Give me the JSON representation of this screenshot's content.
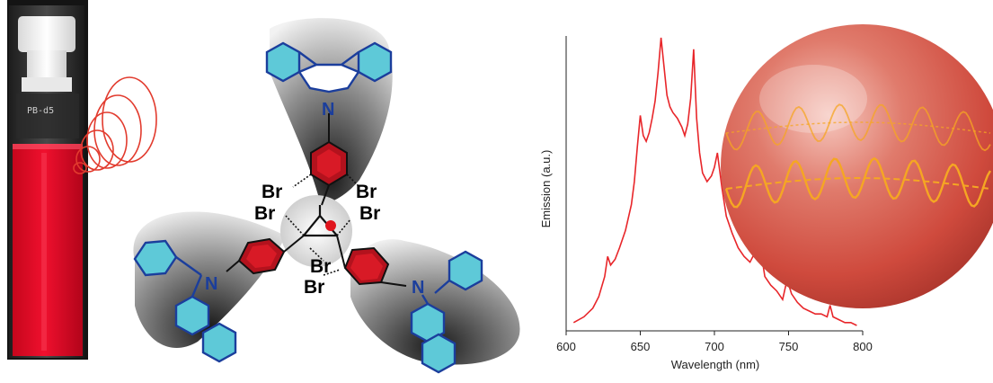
{
  "cuvette": {
    "label": "PB-d5"
  },
  "molecule": {
    "bromine_label": "Br",
    "nitrogen_label": "N",
    "colors": {
      "benzene_core": "#b3121d",
      "carbazole_fill": "#5ec9d8",
      "carbazole_stroke": "#1b3e9c",
      "dot": "#e0141c"
    }
  },
  "chart_data": {
    "type": "line",
    "xlabel": "Wavelength (nm)",
    "ylabel": "Emission (a.u.)",
    "xlim": [
      600,
      800
    ],
    "x_ticks": [
      "600",
      "650",
      "700",
      "750",
      "800"
    ],
    "grid": false,
    "series_color": "#e8262a",
    "series": [
      {
        "x": [
          605,
          612,
          618,
          622,
          626,
          628,
          630,
          633,
          636,
          640,
          644,
          646,
          648,
          650,
          652,
          654,
          656,
          658,
          660,
          662,
          664,
          666,
          668,
          670,
          672,
          675,
          678,
          680,
          682,
          684,
          686,
          688,
          690,
          692,
          695,
          698,
          700,
          702,
          705,
          708,
          712,
          716,
          720,
          724,
          727,
          729,
          731,
          734,
          738,
          742,
          746,
          749,
          752,
          756,
          760,
          764,
          768,
          772,
          776,
          778,
          780,
          784,
          788,
          792,
          796
        ],
        "y": [
          0.01,
          0.03,
          0.06,
          0.1,
          0.17,
          0.24,
          0.21,
          0.23,
          0.27,
          0.33,
          0.42,
          0.5,
          0.62,
          0.73,
          0.66,
          0.64,
          0.67,
          0.72,
          0.78,
          0.88,
          1.0,
          0.9,
          0.8,
          0.76,
          0.74,
          0.72,
          0.69,
          0.66,
          0.7,
          0.79,
          0.96,
          0.72,
          0.6,
          0.53,
          0.5,
          0.52,
          0.55,
          0.6,
          0.48,
          0.38,
          0.32,
          0.27,
          0.24,
          0.22,
          0.25,
          0.37,
          0.27,
          0.17,
          0.14,
          0.12,
          0.09,
          0.16,
          0.11,
          0.08,
          0.06,
          0.05,
          0.04,
          0.04,
          0.03,
          0.07,
          0.03,
          0.02,
          0.01,
          0.01,
          0.0
        ]
      }
    ]
  },
  "microsphere": {
    "color": "#d95a4d",
    "wave_color": "#f5a623"
  }
}
